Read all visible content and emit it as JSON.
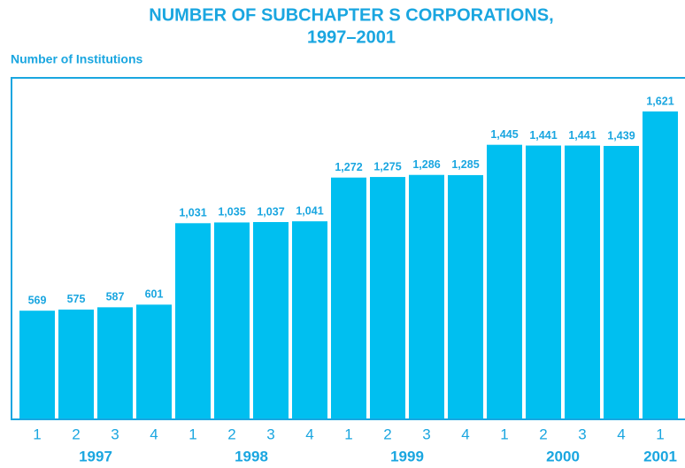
{
  "chart_data": {
    "type": "bar",
    "title": "NUMBER OF SUBCHAPTER S CORPORATIONS,",
    "subtitle": "1997–2001",
    "y_label": "Number of Institutions",
    "categories": [
      "1",
      "2",
      "3",
      "4",
      "1",
      "2",
      "3",
      "4",
      "1",
      "2",
      "3",
      "4",
      "1",
      "2",
      "3",
      "4",
      "1"
    ],
    "groups": [
      "1997",
      "1998",
      "1999",
      "2000",
      "2001"
    ],
    "values": [
      569,
      575,
      587,
      601,
      1031,
      1035,
      1037,
      1041,
      1272,
      1275,
      1286,
      1285,
      1445,
      1441,
      1441,
      1439,
      1621
    ],
    "value_labels": [
      "569",
      "575",
      "587",
      "601",
      "1,031",
      "1,035",
      "1,037",
      "1,041",
      "1,272",
      "1,275",
      "1,286",
      "1,285",
      "1,445",
      "1,441",
      "1,441",
      "1,439",
      "1,621"
    ],
    "color": "#00bff0"
  }
}
